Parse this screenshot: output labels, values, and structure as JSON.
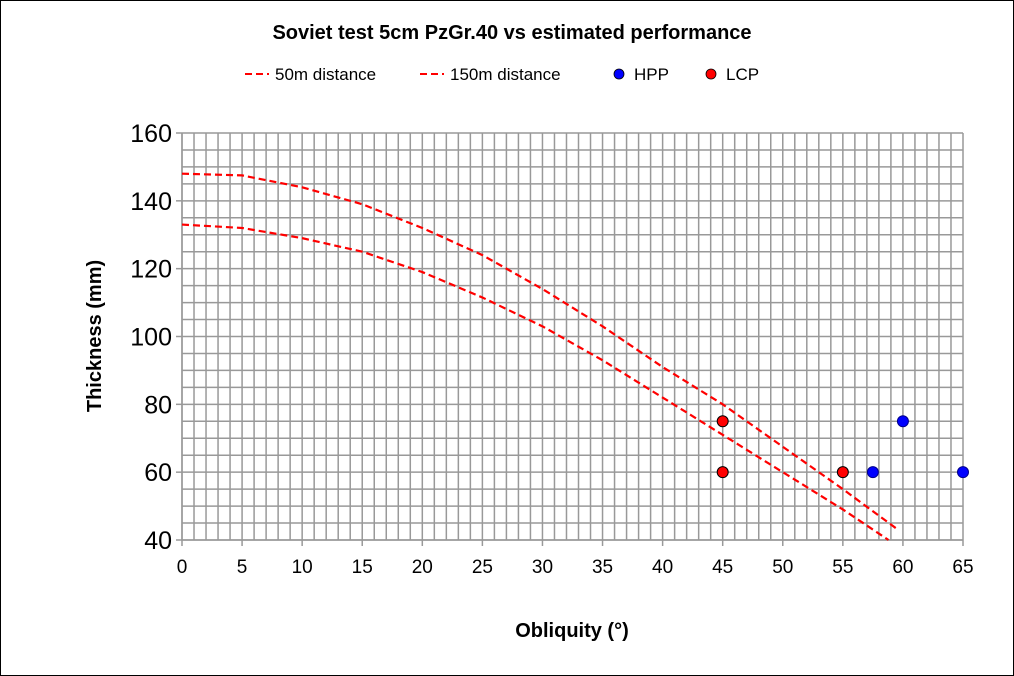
{
  "chart_data": {
    "type": "line+scatter",
    "title": "Soviet test 5cm PzGr.40 vs estimated performance",
    "xlabel": "Obliquity (°)",
    "ylabel": "Thickness (mm)",
    "xlim": [
      0,
      65
    ],
    "ylim": [
      40,
      160
    ],
    "xticks": [
      0,
      5,
      10,
      15,
      20,
      25,
      30,
      35,
      40,
      45,
      50,
      55,
      60,
      65
    ],
    "yticks": [
      40,
      60,
      80,
      100,
      120,
      140,
      160
    ],
    "grid": true,
    "legend_position": "top",
    "series": [
      {
        "name": "50m distance",
        "style": "dashed",
        "color": "#ff0000",
        "x": [
          0,
          5,
          10,
          15,
          20,
          25,
          30,
          35,
          40,
          45,
          50,
          55,
          59.6
        ],
        "y": [
          148,
          147.5,
          144,
          139,
          132,
          124,
          114,
          103,
          91,
          80,
          67.5,
          55,
          43
        ]
      },
      {
        "name": "150m distance",
        "style": "dashed",
        "color": "#ff0000",
        "x": [
          0,
          5,
          10,
          15,
          20,
          25,
          30,
          35,
          40,
          45,
          50,
          55,
          58.8
        ],
        "y": [
          133,
          132,
          129,
          125,
          119,
          111.5,
          103,
          93,
          82,
          71,
          60,
          49,
          40
        ]
      },
      {
        "name": "HPP",
        "style": "marker",
        "color": "#0000ff",
        "x": [
          57.5,
          60,
          65
        ],
        "y": [
          60,
          75,
          60
        ]
      },
      {
        "name": "LCP",
        "style": "marker",
        "color": "#ff0000",
        "x": [
          45,
          45,
          55
        ],
        "y": [
          75,
          60,
          60
        ]
      }
    ]
  }
}
